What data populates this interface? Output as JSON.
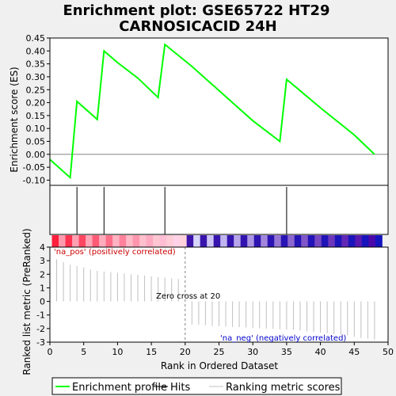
{
  "chart_data": {
    "type": "line",
    "title_line1": "Enrichment plot: GSE65722 HT29",
    "title_line2": "CARNOSICACID 24H",
    "top_panel": {
      "ylabel": "Enrichment score (ES)",
      "ylim": [
        -0.12,
        0.45
      ],
      "yticks": [
        "0.45",
        "0.40",
        "0.35",
        "0.30",
        "0.25",
        "0.20",
        "0.15",
        "0.10",
        "0.05",
        "0.00",
        "-0.05",
        "-0.10"
      ],
      "ytick_values": [
        0.45,
        0.4,
        0.35,
        0.3,
        0.25,
        0.2,
        0.15,
        0.1,
        0.05,
        0.0,
        -0.05,
        -0.1
      ],
      "series": [
        {
          "name": "Enrichment profile",
          "color": "#00ff00",
          "x": [
            0,
            3,
            4,
            7,
            8,
            10,
            13,
            16,
            17,
            21,
            30,
            34,
            35,
            40,
            45,
            48
          ],
          "y": [
            -0.02,
            -0.09,
            0.205,
            0.135,
            0.4,
            0.355,
            0.295,
            0.22,
            0.425,
            0.34,
            0.13,
            0.05,
            0.29,
            0.18,
            0.075,
            0.0
          ]
        }
      ],
      "hits": [
        4,
        8,
        17,
        35
      ]
    },
    "bottom_panel": {
      "ylabel": "Ranked list metric (PreRanked)",
      "ylim": [
        -3,
        4
      ],
      "yticks": [
        "4",
        "3",
        "2",
        "1",
        "0",
        "-1",
        "-2",
        "-3"
      ],
      "ytick_values": [
        4,
        3,
        2,
        1,
        0,
        -1,
        -2,
        -3
      ],
      "xlabel": "Rank in Ordered Dataset",
      "xticks": [
        "0",
        "5",
        "10",
        "15",
        "20",
        "25",
        "30",
        "35",
        "40",
        "45",
        "50"
      ],
      "xtick_values": [
        0,
        5,
        10,
        15,
        20,
        25,
        30,
        35,
        40,
        45,
        50
      ],
      "xlim": [
        0,
        50
      ],
      "metric_x": [
        1,
        2,
        3,
        4,
        5,
        6,
        7,
        8,
        9,
        10,
        11,
        12,
        13,
        14,
        15,
        16,
        17,
        18,
        19,
        21,
        22,
        23,
        24,
        25,
        26,
        27,
        28,
        29,
        30,
        31,
        32,
        33,
        34,
        35,
        36,
        37,
        38,
        39,
        40,
        41,
        42,
        43,
        44,
        45,
        46,
        47,
        48
      ],
      "metric_y": [
        3.1,
        2.9,
        2.7,
        2.6,
        2.5,
        2.35,
        2.25,
        2.2,
        2.15,
        2.1,
        2.05,
        2.0,
        1.95,
        1.9,
        1.85,
        1.8,
        1.75,
        1.7,
        1.65,
        -1.7,
        -1.72,
        -1.75,
        -1.8,
        -1.82,
        -1.85,
        -1.88,
        -1.9,
        -1.92,
        -1.95,
        -1.98,
        -2.0,
        -2.02,
        -2.05,
        -2.08,
        -2.1,
        -2.15,
        -2.2,
        -2.25,
        -2.3,
        -2.35,
        -2.4,
        -2.45,
        -2.5,
        -2.6,
        -2.7,
        -2.75,
        -2.8
      ],
      "zero_cross_label": "Zero cross at 20",
      "zero_cross_x": 20,
      "pos_label": "'na_pos' (positively correlated)",
      "neg_label": "'na_neg' (negatively correlated)",
      "pos_color": "#cc0000",
      "neg_color": "#0000cc"
    },
    "legend": [
      {
        "label": "Enrichment profile",
        "color": "#00ff00",
        "style": "line"
      },
      {
        "label": "Hits",
        "color": "#000000",
        "style": "line"
      },
      {
        "label": "Ranking metric scores",
        "color": "#c0c0c0",
        "style": "line"
      }
    ]
  }
}
